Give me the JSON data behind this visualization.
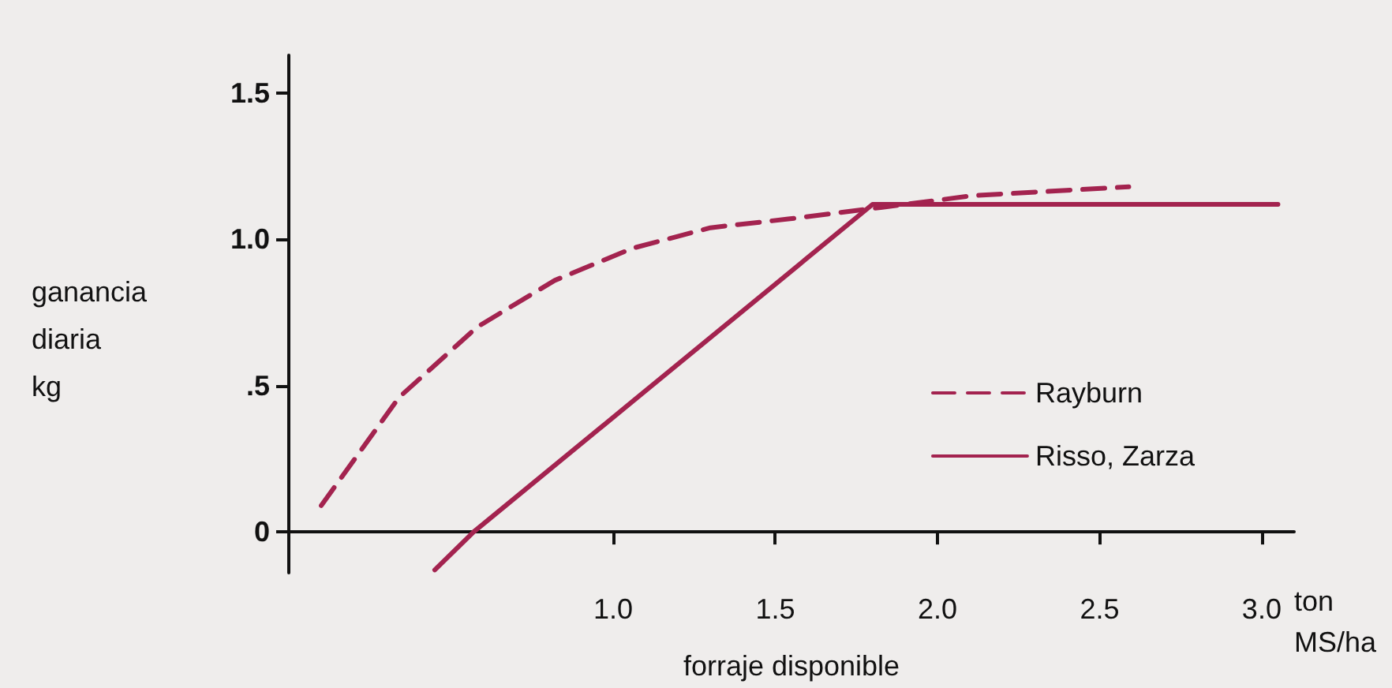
{
  "chart_data": {
    "type": "line",
    "xlabel": "forraje disponible",
    "ylabel": "ganancia\ndiaria\nkg",
    "annotations": [
      "ton\nMS/ha"
    ],
    "xlim": [
      0,
      3.1
    ],
    "ylim": [
      -0.14,
      1.63
    ],
    "xticks": [
      {
        "value": 1,
        "label": "1.0"
      },
      {
        "value": 1.5,
        "label": "1.5"
      },
      {
        "value": 2,
        "label": "2.0"
      },
      {
        "value": 2.5,
        "label": "2.5"
      },
      {
        "value": 3,
        "label": "3.0"
      }
    ],
    "yticks": [
      0,
      {
        "value": 0.5,
        "label": ".5"
      },
      {
        "value": 1,
        "label": "1.0"
      },
      {
        "value": 1.5,
        "label": "1.5"
      }
    ],
    "grid": false,
    "legend": "right",
    "marker": "none",
    "series": [
      {
        "name": "Rayburn",
        "color": "#a3234f",
        "line_style": "dashed",
        "x": [
          0.1,
          0.34,
          0.58,
          0.82,
          1.06,
          1.3,
          1.54,
          1.83,
          2.11,
          2.59
        ],
        "values": [
          0.09,
          0.46,
          0.7,
          0.86,
          0.97,
          1.04,
          1.07,
          1.11,
          1.15,
          1.18
        ]
      },
      {
        "name": "Risso, Zarza",
        "color": "#a3234f",
        "line_style": "solid",
        "x": [
          0.45,
          0.57,
          1.8,
          3.05
        ],
        "values": [
          -0.13,
          0,
          1.12,
          1.12
        ]
      }
    ]
  }
}
